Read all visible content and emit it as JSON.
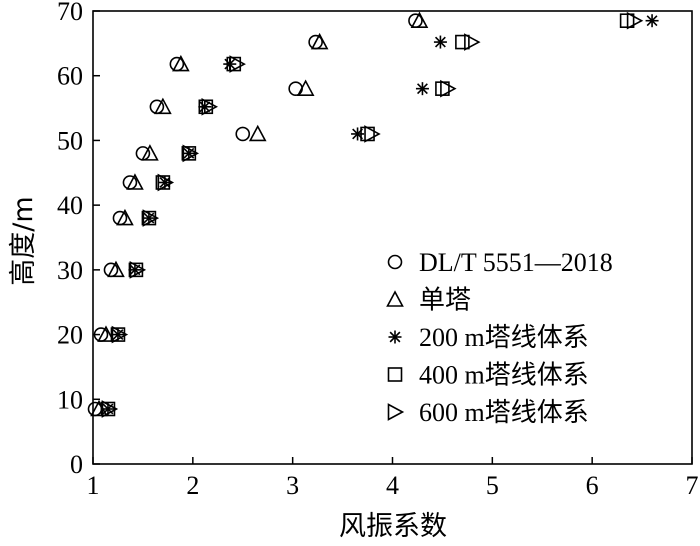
{
  "chart_data": {
    "type": "scatter",
    "xlabel": "风振系数",
    "ylabel": "高度/m",
    "xlim": [
      1,
      7
    ],
    "ylim": [
      0,
      70
    ],
    "xticks": [
      "1",
      "2",
      "3",
      "4",
      "5",
      "6",
      "7"
    ],
    "yticks": [
      "0",
      "10",
      "20",
      "30",
      "40",
      "50",
      "60",
      "70"
    ],
    "grid": false,
    "legend_position": "bottom-right",
    "series": [
      {
        "name": "DL/T 5551—2018",
        "marker": "circle",
        "points": [
          [
            1.02,
            8.5
          ],
          [
            1.08,
            20
          ],
          [
            1.18,
            30
          ],
          [
            1.27,
            38
          ],
          [
            1.37,
            43.5
          ],
          [
            1.5,
            48
          ],
          [
            1.64,
            55.2
          ],
          [
            1.84,
            61.8
          ],
          [
            2.5,
            51
          ],
          [
            3.03,
            58
          ],
          [
            3.23,
            65.2
          ],
          [
            4.23,
            68.5
          ]
        ]
      },
      {
        "name": "单塔",
        "marker": "triangle",
        "points": [
          [
            1.06,
            8.5
          ],
          [
            1.13,
            20
          ],
          [
            1.23,
            30
          ],
          [
            1.32,
            38
          ],
          [
            1.42,
            43.5
          ],
          [
            1.57,
            48
          ],
          [
            1.7,
            55.2
          ],
          [
            1.88,
            61.8
          ],
          [
            2.65,
            51
          ],
          [
            3.13,
            58
          ],
          [
            3.27,
            65.2
          ],
          [
            4.27,
            68.5
          ]
        ]
      },
      {
        "name": "200 m塔线体系",
        "marker": "asterisk",
        "points": [
          [
            1.15,
            8.5
          ],
          [
            1.25,
            20
          ],
          [
            1.42,
            30
          ],
          [
            1.56,
            38
          ],
          [
            1.72,
            43.5
          ],
          [
            1.96,
            48
          ],
          [
            2.12,
            55.2
          ],
          [
            2.37,
            61.8
          ],
          [
            3.65,
            51
          ],
          [
            4.3,
            58
          ],
          [
            4.48,
            65.2
          ],
          [
            6.6,
            68.5
          ]
        ]
      },
      {
        "name": "400 m塔线体系",
        "marker": "square",
        "points": [
          [
            1.15,
            8.5
          ],
          [
            1.25,
            20
          ],
          [
            1.43,
            30
          ],
          [
            1.56,
            38
          ],
          [
            1.7,
            43.5
          ],
          [
            1.96,
            48
          ],
          [
            2.13,
            55.2
          ],
          [
            2.41,
            61.8
          ],
          [
            3.75,
            51
          ],
          [
            4.5,
            58
          ],
          [
            4.7,
            65.2
          ],
          [
            6.35,
            68.5
          ]
        ]
      },
      {
        "name": "600 m塔线体系",
        "marker": "triangle-right",
        "points": [
          [
            1.16,
            8.5
          ],
          [
            1.26,
            20
          ],
          [
            1.44,
            30
          ],
          [
            1.57,
            38
          ],
          [
            1.72,
            43.5
          ],
          [
            1.97,
            48
          ],
          [
            2.16,
            55.2
          ],
          [
            2.44,
            61.8
          ],
          [
            3.79,
            51
          ],
          [
            4.55,
            58
          ],
          [
            4.79,
            65.2
          ],
          [
            6.42,
            68.5
          ]
        ]
      }
    ]
  }
}
